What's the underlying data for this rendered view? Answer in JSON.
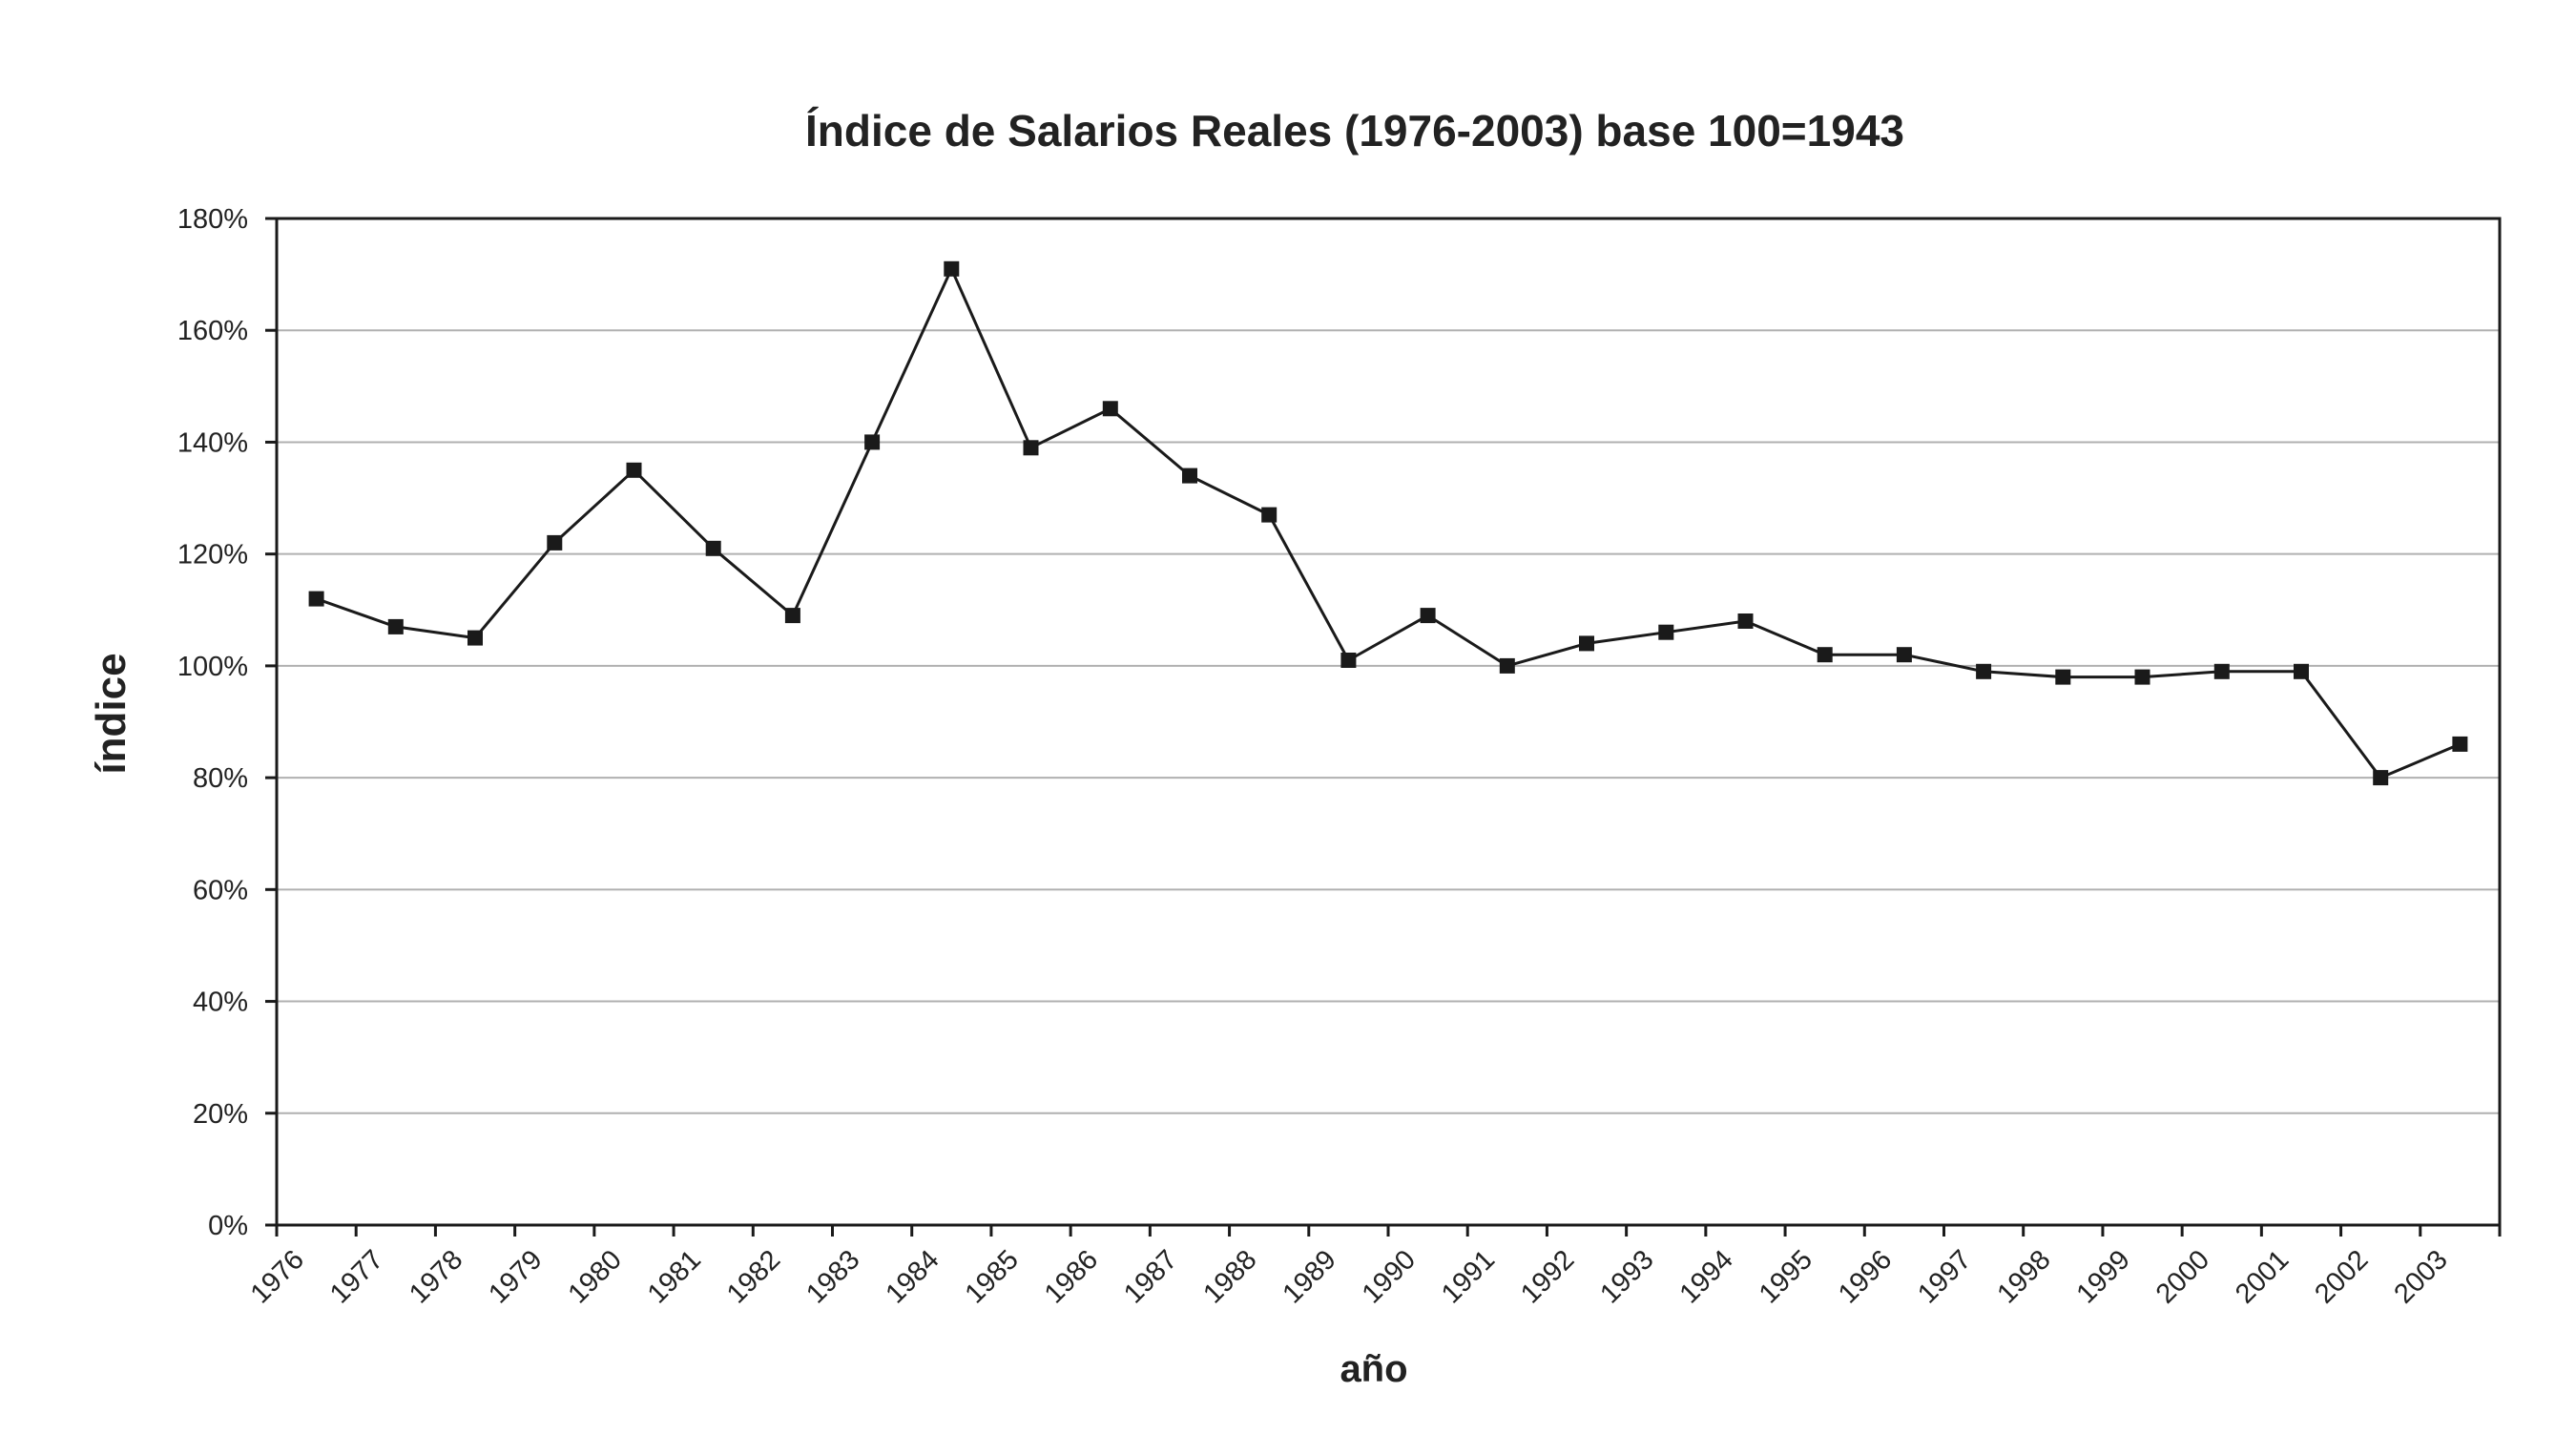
{
  "chart_data": {
    "type": "line",
    "title": "Índice de Salarios Reales (1976-2003) base 100=1943",
    "xlabel": "año",
    "ylabel": "índice",
    "ylim": [
      0,
      180
    ],
    "ytick_step": 20,
    "yticks": [
      "0%",
      "20%",
      "40%",
      "60%",
      "80%",
      "100%",
      "120%",
      "140%",
      "160%",
      "180%"
    ],
    "grid": true,
    "legend": "none",
    "marker": "square",
    "colors": {
      "line": "#1a1a1a",
      "marker": "#1a1a1a",
      "grid": "#b0b0b0",
      "axis": "#1a1a1a",
      "text": "#222222"
    },
    "categories": [
      "1976",
      "1977",
      "1978",
      "1979",
      "1980",
      "1981",
      "1982",
      "1983",
      "1984",
      "1985",
      "1986",
      "1987",
      "1988",
      "1989",
      "1990",
      "1991",
      "1992",
      "1993",
      "1994",
      "1995",
      "1996",
      "1997",
      "1998",
      "1999",
      "2000",
      "2001",
      "2002",
      "2003"
    ],
    "series": [
      {
        "name": "Índice de Salarios Reales",
        "values": [
          112,
          107,
          105,
          122,
          135,
          121,
          109,
          140,
          171,
          139,
          146,
          134,
          127,
          101,
          109,
          100,
          104,
          106,
          108,
          102,
          102,
          99,
          98,
          98,
          99,
          99,
          80,
          86
        ]
      }
    ]
  }
}
